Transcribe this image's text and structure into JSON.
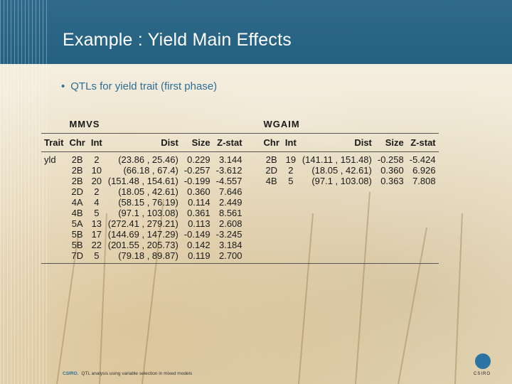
{
  "slide": {
    "title": "Example : Yield Main Effects",
    "bullet": "QTLs for yield trait (first phase)",
    "bullet_marker": "•",
    "footer_org": "CSIRO.",
    "footer_text": "QTL analysis using variable selection in mixed models",
    "logo_text": "CSIRO"
  },
  "table": {
    "group_left": "MMVS",
    "group_right": "WGAIM",
    "headers": [
      "Trait",
      "Chr",
      "Int",
      "Dist",
      "Size",
      "Z-stat",
      "Chr",
      "Int",
      "Dist",
      "Size",
      "Z-stat"
    ],
    "rows": [
      [
        "yld",
        "2B",
        "2",
        "(23.86 , 25.46)",
        "0.229",
        "3.144",
        "2B",
        "19",
        "(141.11 , 151.48)",
        "-0.258",
        "-5.424"
      ],
      [
        "",
        "2B",
        "10",
        "(66.18 , 67.4)",
        "-0.257",
        "-3.612",
        "2D",
        "2",
        "(18.05 , 42.61)",
        "0.360",
        "6.926"
      ],
      [
        "",
        "2B",
        "20",
        "(151.48 , 154.61)",
        "-0.199",
        "-4.557",
        "4B",
        "5",
        "(97.1 , 103.08)",
        "0.363",
        "7.808"
      ],
      [
        "",
        "2D",
        "2",
        "(18.05 , 42.61)",
        "0.360",
        "7.646",
        "",
        "",
        "",
        "",
        ""
      ],
      [
        "",
        "4A",
        "4",
        "(58.15 , 76.19)",
        "0.114",
        "2.449",
        "",
        "",
        "",
        "",
        ""
      ],
      [
        "",
        "4B",
        "5",
        "(97.1 , 103.08)",
        "0.361",
        "8.561",
        "",
        "",
        "",
        "",
        ""
      ],
      [
        "",
        "5A",
        "13",
        "(272.41 , 279.21)",
        "0.113",
        "2.608",
        "",
        "",
        "",
        "",
        ""
      ],
      [
        "",
        "5B",
        "17",
        "(144.69 , 147.29)",
        "-0.149",
        "-3.245",
        "",
        "",
        "",
        "",
        ""
      ],
      [
        "",
        "5B",
        "22",
        "(201.55 , 205.73)",
        "0.142",
        "3.184",
        "",
        "",
        "",
        "",
        ""
      ],
      [
        "",
        "7D",
        "5",
        "(79.18 , 89.87)",
        "0.119",
        "2.700",
        "",
        "",
        "",
        "",
        ""
      ]
    ]
  }
}
